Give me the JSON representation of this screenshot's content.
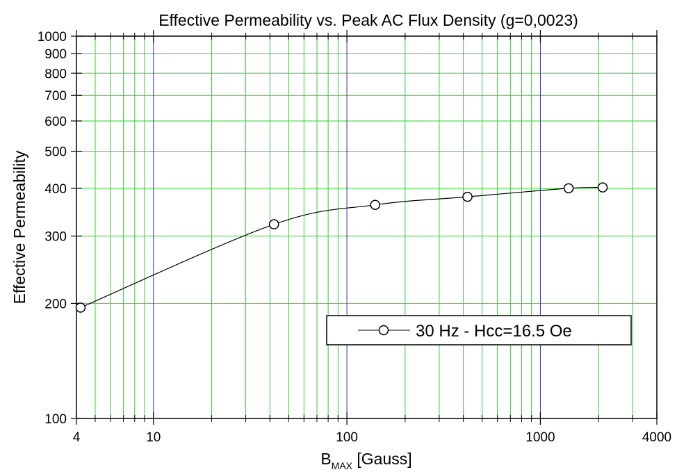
{
  "chart_data": {
    "type": "line",
    "title": "Effective Permeability vs. Peak AC Flux Density (g=0,0023)",
    "xlabel_main": "B",
    "xlabel_sub": "MAX",
    "xlabel_rest": " [Gauss]",
    "ylabel": "Effective Permeability",
    "x_scale": "log",
    "y_scale": "log",
    "xlim": [
      4,
      4000
    ],
    "ylim": [
      100,
      1000
    ],
    "x_ticks": [
      4,
      10,
      100,
      1000,
      4000
    ],
    "x_tick_labels": [
      "4",
      "10",
      "100",
      "1000",
      "4000"
    ],
    "y_ticks": [
      100,
      200,
      300,
      400,
      500,
      600,
      700,
      800,
      900,
      1000
    ],
    "y_tick_labels": [
      "100",
      "200",
      "300",
      "400",
      "500",
      "600",
      "700",
      "800",
      "900",
      "1000"
    ],
    "x_minor_grid": [
      5,
      6,
      7,
      8,
      9,
      20,
      30,
      40,
      50,
      60,
      70,
      80,
      90,
      200,
      300,
      400,
      500,
      600,
      700,
      800,
      900,
      2000,
      3000
    ],
    "x_major_grid": [
      10,
      100,
      1000
    ],
    "y_grid": [
      200,
      300,
      400,
      500,
      600,
      700,
      800,
      900
    ],
    "grid": true,
    "grid_color": "#33cc33",
    "major_grid_color": "#3333aa",
    "legend_position": "lower-right",
    "series": [
      {
        "name": "30 Hz - Hcc=16.5 Oe",
        "marker": "open-circle",
        "color": "#000000",
        "x": [
          4.2,
          42,
          140,
          420,
          1400,
          2100
        ],
        "y": [
          195,
          322,
          362,
          380,
          400,
          402
        ]
      }
    ]
  }
}
